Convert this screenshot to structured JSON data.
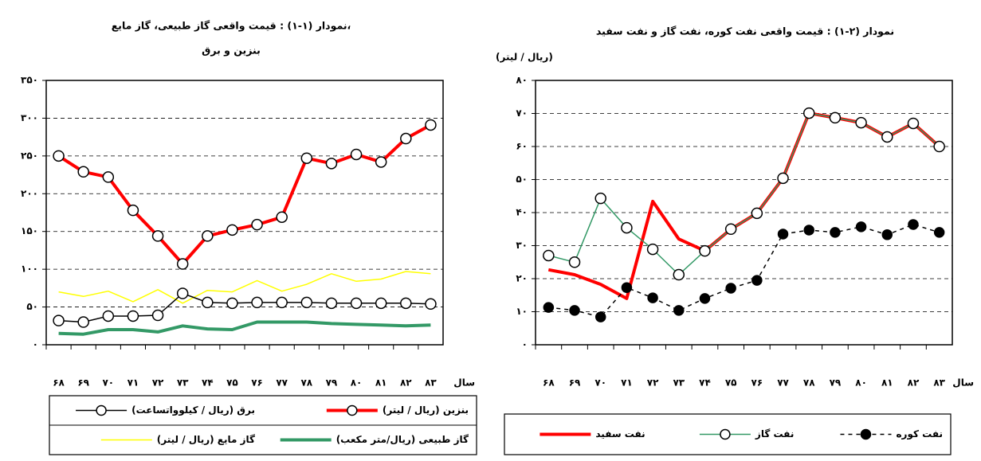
{
  "chart_data": [
    {
      "type": "line",
      "title": [
        "نمودار (۱-۱) : قیمت واقعی گاز طبیعی، گاز مایع،",
        "بنزین و برق"
      ],
      "x_label": "سال",
      "categories": [
        "۶۸",
        "۶۹",
        "۷۰",
        "۷۱",
        "۷۲",
        "۷۳",
        "۷۴",
        "۷۵",
        "۷۶",
        "۷۷",
        "۷۸",
        "۷۹",
        "۸۰",
        "۸۱",
        "۸۲",
        "۸۳"
      ],
      "ylim": [
        0,
        350
      ],
      "yticks": [
        {
          "value": 0,
          "label": "٠"
        },
        {
          "value": 50,
          "label": "۵۰"
        },
        {
          "value": 100,
          "label": "۱۰۰"
        },
        {
          "value": 150,
          "label": "۱۵۰"
        },
        {
          "value": 200,
          "label": "۲۰۰"
        },
        {
          "value": 250,
          "label": "۲۵۰"
        },
        {
          "value": 300,
          "label": "۳۰۰"
        },
        {
          "value": 350,
          "label": "۳۵۰"
        }
      ],
      "grid": true,
      "series": [
        {
          "name": "بنزین (ریال / لیتر)",
          "color": "#ff0000",
          "marker": "open-circle",
          "width": 4,
          "values": [
            250,
            229,
            222,
            178,
            144,
            107,
            144,
            152,
            159,
            169,
            247,
            240,
            252,
            242,
            273,
            291
          ]
        },
        {
          "name": "برق (ریال / کیلوواتساعت)",
          "color": "#000000",
          "marker": "open-circle",
          "width": 1.5,
          "values": [
            32,
            30,
            38,
            38,
            39,
            68,
            56,
            55,
            56,
            56,
            56,
            55,
            55,
            55,
            55,
            54
          ]
        },
        {
          "name": "گاز طبیعی (ریال/متر مکعب)",
          "color": "#339966",
          "marker": "none",
          "width": 4,
          "values": [
            15,
            14,
            20,
            20,
            17,
            25,
            21,
            20,
            30,
            30,
            30,
            28,
            27,
            26,
            25,
            26
          ]
        },
        {
          "name": "گاز مایع (ریال / لیتر)",
          "color": "#ffff00",
          "marker": "none",
          "width": 1.5,
          "values": [
            70,
            64,
            71,
            57,
            73,
            55,
            72,
            70,
            85,
            71,
            80,
            94,
            84,
            87,
            97,
            94
          ]
        }
      ]
    },
    {
      "type": "line",
      "title": [
        "نمودار (۲-۱) : قیمت واقعی نفت کوره، نفت گاز و نفت سفید"
      ],
      "y_label": "(ریال / لیتر)",
      "x_label": "سال",
      "categories": [
        "۶۸",
        "۶۹",
        "۷۰",
        "۷۱",
        "۷۲",
        "۷۳",
        "۷۴",
        "۷۵",
        "۷۶",
        "۷۷",
        "۷۸",
        "۷۹",
        "۸۰",
        "۸۱",
        "۸۲",
        "۸۳"
      ],
      "ylim": [
        0,
        80
      ],
      "yticks": [
        {
          "value": 0,
          "label": "٠"
        },
        {
          "value": 10,
          "label": "۱۰"
        },
        {
          "value": 20,
          "label": "۲۰"
        },
        {
          "value": 30,
          "label": "۳۰"
        },
        {
          "value": 40,
          "label": "۴۰"
        },
        {
          "value": 50,
          "label": "۵۰"
        },
        {
          "value": 60,
          "label": "۶۰"
        },
        {
          "value": 70,
          "label": "۷۰"
        },
        {
          "value": 80,
          "label": "۸۰"
        }
      ],
      "grid": true,
      "series": [
        {
          "name": "نفت کوره",
          "color": "#000000",
          "marker": "filled-circle",
          "width": 1.5,
          "dash": true,
          "values": [
            11.3,
            10.4,
            8.4,
            17.3,
            14.2,
            10.4,
            14,
            17.1,
            19.5,
            33.5,
            34.7,
            34,
            35.7,
            33.3,
            36.4,
            34
          ]
        },
        {
          "name": "نفت گاز",
          "color": "#339966",
          "marker": "open-circle",
          "width": 1.5,
          "values": [
            27,
            25,
            44.3,
            35.4,
            28.9,
            21.2,
            28.4,
            35,
            39.8,
            50.4,
            70.1,
            68.7,
            67.2,
            62.9,
            67,
            60
          ]
        },
        {
          "name": "نفت سفید",
          "color": "#ff0000",
          "marker": "none",
          "width": 4,
          "values": [
            22.7,
            21.2,
            18.3,
            14,
            43.4,
            32,
            28.4,
            35,
            39.8,
            50.4,
            70.1,
            68.7,
            67.2,
            62.9,
            67,
            60
          ]
        }
      ]
    }
  ]
}
